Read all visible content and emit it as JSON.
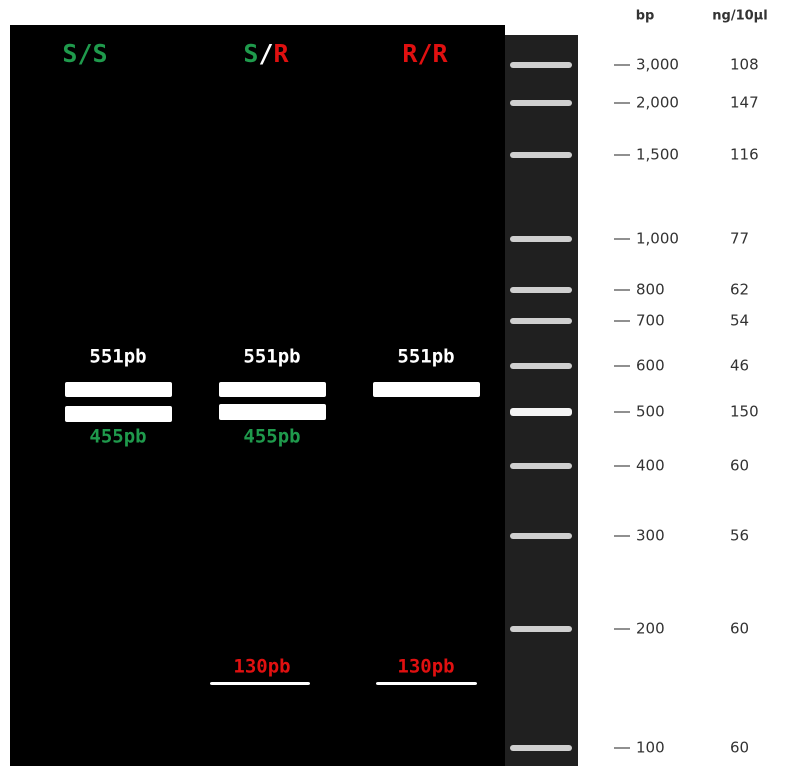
{
  "lanes": [
    {
      "label_parts": [
        "S",
        "/",
        "S"
      ],
      "band_labels": [
        "551pb",
        "455pb"
      ]
    },
    {
      "label_parts": [
        "S",
        "/",
        "R"
      ],
      "band_labels": [
        "551pb",
        "455pb",
        "130pb"
      ]
    },
    {
      "label_parts": [
        "R",
        "/",
        "R"
      ],
      "band_labels": [
        "551pb",
        "130pb"
      ]
    }
  ],
  "ladder": {
    "headers": [
      "bp",
      "ng/10µl"
    ],
    "markers": [
      {
        "bp": "3,000",
        "ng": "108"
      },
      {
        "bp": "2,000",
        "ng": "147"
      },
      {
        "bp": "1,500",
        "ng": "116"
      },
      {
        "bp": "1,000",
        "ng": "77"
      },
      {
        "bp": "800",
        "ng": "62"
      },
      {
        "bp": "700",
        "ng": "54"
      },
      {
        "bp": "600",
        "ng": "46"
      },
      {
        "bp": "500",
        "ng": "150"
      },
      {
        "bp": "400",
        "ng": "60"
      },
      {
        "bp": "300",
        "ng": "56"
      },
      {
        "bp": "200",
        "ng": "60"
      },
      {
        "bp": "100",
        "ng": "60"
      }
    ]
  }
}
